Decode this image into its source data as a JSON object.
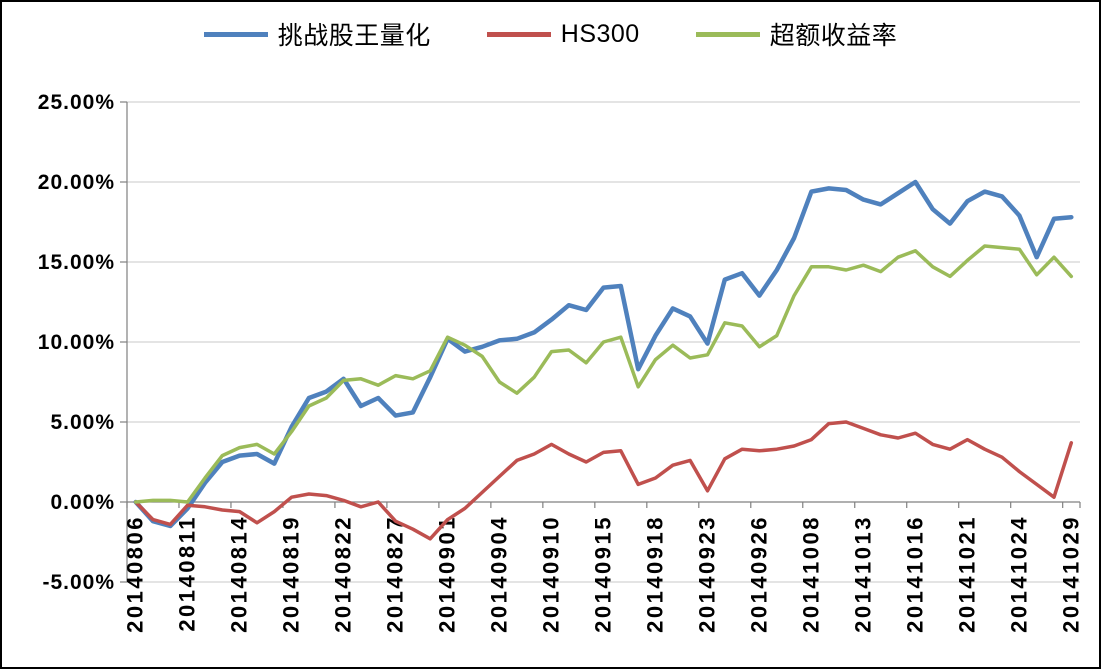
{
  "window": {
    "background": "#FFFFFF",
    "border_color": "#000000"
  },
  "chart_data": {
    "type": "line",
    "title": "",
    "legend_position": "top",
    "grid": true,
    "gridline_color": "#C9C9C9",
    "axis_color": "#808080",
    "label_color": "#000000",
    "ylim": [
      -5,
      25
    ],
    "y_gridline_step": 5,
    "y_ticks": [
      "25.00%",
      "20.00%",
      "15.00%",
      "10.00%",
      "5.00%",
      "0.00%",
      "-5.00%"
    ],
    "x_tick_interval": 3,
    "x_tick_labels": [
      "20140806",
      "20140811",
      "20140814",
      "20140819",
      "20140822",
      "20140827",
      "20140901",
      "20140904",
      "20140910",
      "20140915",
      "20140918",
      "20140923",
      "20140926",
      "20141008",
      "20141013",
      "20141016",
      "20141021",
      "20141024",
      "20141029"
    ],
    "categories": [
      "20140806",
      "20140807",
      "20140808",
      "20140811",
      "20140812",
      "20140813",
      "20140814",
      "20140815",
      "20140818",
      "20140819",
      "20140820",
      "20140821",
      "20140822",
      "20140825",
      "20140826",
      "20140827",
      "20140828",
      "20140829",
      "20140901",
      "20140902",
      "20140903",
      "20140904",
      "20140905",
      "20140909",
      "20140910",
      "20140911",
      "20140912",
      "20140915",
      "20140916",
      "20140917",
      "20140918",
      "20140919",
      "20140922",
      "20140923",
      "20140924",
      "20140925",
      "20140926",
      "20140929",
      "20140930",
      "20141008",
      "20141009",
      "20141010",
      "20141013",
      "20141014",
      "20141015",
      "20141016",
      "20141017",
      "20141020",
      "20141021",
      "20141022",
      "20141023",
      "20141024",
      "20141027",
      "20141028",
      "20141029"
    ],
    "series": [
      {
        "id": "quant",
        "name": "挑战股王量化",
        "color": "#4F81BD",
        "stroke_width": 4.5,
        "values": [
          0.0,
          -1.2,
          -1.5,
          -0.4,
          1.2,
          2.5,
          2.9,
          3.0,
          2.4,
          4.7,
          6.5,
          6.9,
          7.7,
          6.0,
          6.5,
          5.4,
          5.6,
          7.8,
          10.2,
          9.4,
          9.7,
          10.1,
          10.2,
          10.6,
          11.4,
          12.3,
          12.0,
          13.4,
          13.5,
          8.3,
          10.4,
          12.1,
          11.6,
          9.9,
          13.9,
          14.3,
          12.9,
          14.5,
          16.5,
          19.4,
          19.6,
          19.5,
          18.9,
          18.6,
          19.3,
          20.0,
          18.3,
          17.4,
          18.8,
          19.4,
          19.1,
          17.9,
          15.3,
          17.7,
          17.8
        ]
      },
      {
        "id": "hs300",
        "name": "HS300",
        "color": "#C0504D",
        "stroke_width": 3.5,
        "values": [
          0.0,
          -1.1,
          -1.4,
          -0.2,
          -0.3,
          -0.5,
          -0.6,
          -1.3,
          -0.6,
          0.3,
          0.5,
          0.4,
          0.1,
          -0.3,
          0.0,
          -1.2,
          -1.7,
          -2.3,
          -1.1,
          -0.4,
          0.6,
          1.6,
          2.6,
          3.0,
          3.6,
          3.0,
          2.5,
          3.1,
          3.2,
          1.1,
          1.5,
          2.3,
          2.6,
          0.7,
          2.7,
          3.3,
          3.2,
          3.3,
          3.5,
          3.9,
          4.9,
          5.0,
          4.6,
          4.2,
          4.0,
          4.3,
          3.6,
          3.3,
          3.9,
          3.3,
          2.8,
          1.9,
          1.1,
          0.3,
          3.7
        ]
      },
      {
        "id": "excess",
        "name": "超额收益率",
        "color": "#9BBB59",
        "stroke_width": 3.5,
        "values": [
          0.0,
          0.1,
          0.1,
          0.0,
          1.5,
          2.9,
          3.4,
          3.6,
          3.0,
          4.4,
          6.0,
          6.5,
          7.6,
          7.7,
          7.3,
          7.9,
          7.7,
          8.2,
          10.3,
          9.8,
          9.1,
          7.5,
          6.8,
          7.8,
          9.4,
          9.5,
          8.7,
          10.0,
          10.3,
          7.2,
          8.9,
          9.8,
          9.0,
          9.2,
          11.2,
          11.0,
          9.7,
          10.4,
          12.9,
          14.7,
          14.7,
          14.5,
          14.8,
          14.4,
          15.3,
          15.7,
          14.7,
          14.1,
          15.1,
          16.0,
          15.9,
          15.8,
          14.2,
          15.3,
          14.1
        ]
      }
    ]
  }
}
